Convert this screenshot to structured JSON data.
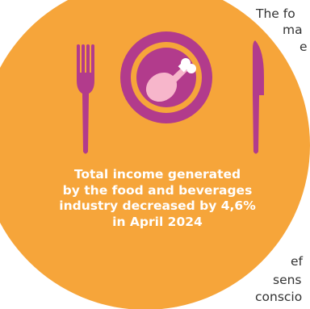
{
  "caption": {
    "lines": [
      "Total income generated",
      "by the food and beverages",
      "industry decreased by 4,6%",
      "in April 2024"
    ]
  },
  "body_text_fragments": [
    "The fo",
    "ma",
    "e",
    "ef",
    "sens",
    "conscio"
  ],
  "icons": [
    "fork-icon",
    "plate-icon",
    "chicken-drumstick-icon",
    "knife-icon"
  ],
  "colors": {
    "circle": "#f6a53a",
    "icon": "#b23b8c",
    "caption_text": "#ffffff",
    "body_text": "#333333"
  }
}
